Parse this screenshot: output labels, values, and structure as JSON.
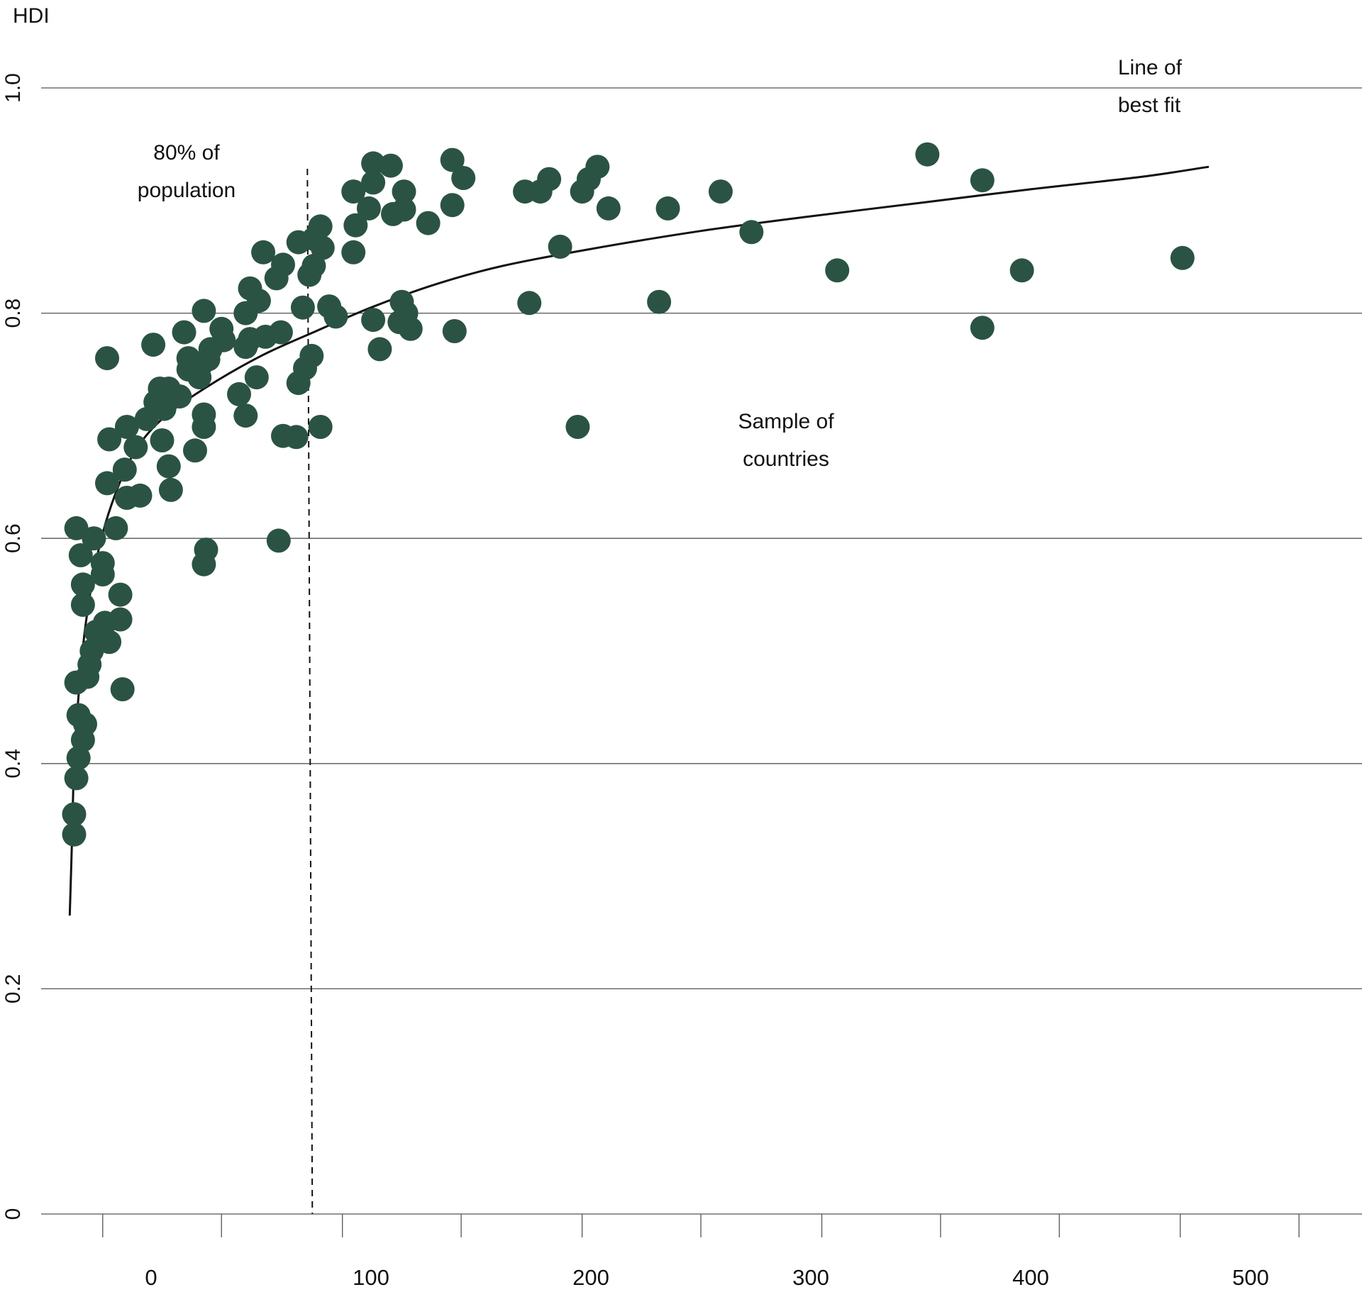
{
  "chart_data": {
    "type": "scatter",
    "title": "",
    "ylabel": "HDI",
    "xlabel": "",
    "ylim": [
      0,
      1.0
    ],
    "xlim": [
      -50,
      550
    ],
    "yticks": [
      {
        "value": 0,
        "label": "0"
      },
      {
        "value": 0.2,
        "label": "0.2"
      },
      {
        "value": 0.4,
        "label": "0.4"
      },
      {
        "value": 0.6,
        "label": "0.6"
      },
      {
        "value": 0.8,
        "label": "0.8"
      },
      {
        "value": 1.0,
        "label": "1.0"
      }
    ],
    "xticks": [
      {
        "value": 0,
        "label": "0"
      },
      {
        "value": 100,
        "label": "100"
      },
      {
        "value": 200,
        "label": "200"
      },
      {
        "value": 300,
        "label": "300"
      },
      {
        "value": 400,
        "label": "400"
      },
      {
        "value": 500,
        "label": "500"
      }
    ],
    "x_minor_ticks": [
      -22,
      32,
      87,
      141,
      196,
      250,
      305,
      359,
      413,
      468,
      522
    ],
    "grid": "horizontal",
    "point_color": "#2b5344",
    "line_color": "#111111",
    "annotations": {
      "population": [
        "80% of",
        "population"
      ],
      "sample": [
        "Sample of",
        "countries"
      ],
      "fit": [
        "Line of",
        "best fit"
      ]
    },
    "reference_line": {
      "x": 73,
      "label": "80% of population"
    },
    "best_fit": [
      [
        -37,
        0.265
      ],
      [
        -36,
        0.33
      ],
      [
        -35,
        0.4
      ],
      [
        -33,
        0.46
      ],
      [
        -30,
        0.52
      ],
      [
        -25,
        0.58
      ],
      [
        -18,
        0.63
      ],
      [
        -8,
        0.675
      ],
      [
        5,
        0.706
      ],
      [
        25,
        0.734
      ],
      [
        50,
        0.762
      ],
      [
        75,
        0.784
      ],
      [
        100,
        0.805
      ],
      [
        130,
        0.826
      ],
      [
        160,
        0.842
      ],
      [
        200,
        0.857
      ],
      [
        250,
        0.873
      ],
      [
        300,
        0.886
      ],
      [
        350,
        0.898
      ],
      [
        400,
        0.91
      ],
      [
        450,
        0.921
      ],
      [
        481,
        0.93
      ]
    ],
    "series": [
      {
        "name": "Sample of countries",
        "points": [
          [
            -35,
            0.337
          ],
          [
            -35,
            0.355
          ],
          [
            -34,
            0.387
          ],
          [
            -33,
            0.405
          ],
          [
            -33,
            0.443
          ],
          [
            -31,
            0.421
          ],
          [
            -30,
            0.435
          ],
          [
            -34,
            0.472
          ],
          [
            -29,
            0.477
          ],
          [
            -28,
            0.488
          ],
          [
            -27,
            0.5
          ],
          [
            -25,
            0.517
          ],
          [
            -21,
            0.525
          ],
          [
            -19,
            0.508
          ],
          [
            -31,
            0.541
          ],
          [
            -31,
            0.559
          ],
          [
            -32,
            0.585
          ],
          [
            -34,
            0.609
          ],
          [
            -26,
            0.6
          ],
          [
            -22,
            0.568
          ],
          [
            -22,
            0.578
          ],
          [
            -14,
            0.528
          ],
          [
            -14,
            0.55
          ],
          [
            -13,
            0.466
          ],
          [
            -16,
            0.609
          ],
          [
            -20,
            0.649
          ],
          [
            -19,
            0.688
          ],
          [
            -11,
            0.636
          ],
          [
            -5,
            0.638
          ],
          [
            -12,
            0.661
          ],
          [
            -11,
            0.699
          ],
          [
            -7,
            0.681
          ],
          [
            -2,
            0.706
          ],
          [
            2,
            0.721
          ],
          [
            4,
            0.733
          ],
          [
            8,
            0.733
          ],
          [
            6,
            0.715
          ],
          [
            8,
            0.729
          ],
          [
            13,
            0.726
          ],
          [
            5,
            0.687
          ],
          [
            8,
            0.664
          ],
          [
            9,
            0.643
          ],
          [
            -20,
            0.76
          ],
          [
            1,
            0.772
          ],
          [
            15,
            0.783
          ],
          [
            17,
            0.76
          ],
          [
            17,
            0.75
          ],
          [
            22,
            0.743
          ],
          [
            23,
            0.755
          ],
          [
            26,
            0.759
          ],
          [
            27,
            0.768
          ],
          [
            32,
            0.786
          ],
          [
            33,
            0.776
          ],
          [
            24,
            0.802
          ],
          [
            24,
            0.71
          ],
          [
            24,
            0.699
          ],
          [
            20,
            0.678
          ],
          [
            25,
            0.59
          ],
          [
            24,
            0.577
          ],
          [
            40,
            0.728
          ],
          [
            43,
            0.709
          ],
          [
            43,
            0.77
          ],
          [
            45,
            0.777
          ],
          [
            48,
            0.743
          ],
          [
            43,
            0.8
          ],
          [
            45,
            0.822
          ],
          [
            49,
            0.811
          ],
          [
            52,
            0.779
          ],
          [
            59,
            0.783
          ],
          [
            57,
            0.831
          ],
          [
            60,
            0.843
          ],
          [
            51,
            0.854
          ],
          [
            67,
            0.863
          ],
          [
            74,
            0.866
          ],
          [
            78,
            0.858
          ],
          [
            72,
            0.834
          ],
          [
            74,
            0.842
          ],
          [
            77,
            0.877
          ],
          [
            69,
            0.805
          ],
          [
            81,
            0.806
          ],
          [
            84,
            0.797
          ],
          [
            67,
            0.738
          ],
          [
            70,
            0.751
          ],
          [
            73,
            0.762
          ],
          [
            60,
            0.691
          ],
          [
            66,
            0.69
          ],
          [
            77,
            0.699
          ],
          [
            58,
            0.598
          ],
          [
            92,
            0.854
          ],
          [
            93,
            0.878
          ],
          [
            92,
            0.908
          ],
          [
            99,
            0.893
          ],
          [
            101,
            0.916
          ],
          [
            101,
            0.933
          ],
          [
            109,
            0.931
          ],
          [
            110,
            0.888
          ],
          [
            115,
            0.908
          ],
          [
            115,
            0.892
          ],
          [
            101,
            0.794
          ],
          [
            113,
            0.792
          ],
          [
            104,
            0.768
          ],
          [
            114,
            0.81
          ],
          [
            116,
            0.8
          ],
          [
            118,
            0.786
          ],
          [
            126,
            0.88
          ],
          [
            137,
            0.896
          ],
          [
            137,
            0.936
          ],
          [
            142,
            0.92
          ],
          [
            138,
            0.784
          ],
          [
            172,
            0.809
          ],
          [
            177,
            0.908
          ],
          [
            181,
            0.919
          ],
          [
            186,
            0.859
          ],
          [
            196,
            0.908
          ],
          [
            199,
            0.919
          ],
          [
            203,
            0.93
          ],
          [
            208,
            0.893
          ],
          [
            170,
            0.908
          ],
          [
            194,
            0.699
          ],
          [
            231,
            0.81
          ],
          [
            235,
            0.893
          ],
          [
            259,
            0.908
          ],
          [
            273,
            0.872
          ],
          [
            312,
            0.838
          ],
          [
            353,
            0.941
          ],
          [
            378,
            0.918
          ],
          [
            378,
            0.787
          ],
          [
            396,
            0.838
          ],
          [
            469,
            0.849
          ]
        ]
      }
    ]
  }
}
